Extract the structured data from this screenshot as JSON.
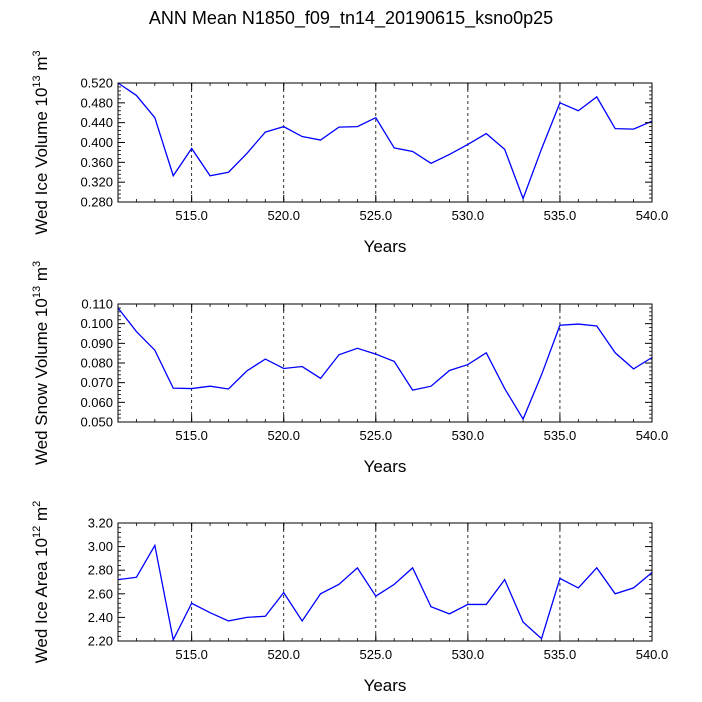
{
  "title": "ANN Mean N1850_f09_tn14_20190615_ksno0p25",
  "chart_data": [
    {
      "type": "line",
      "xlabel": "Years",
      "ylabel_main": "Wed Ice Volume 10",
      "ylabel_exp": "13",
      "ylabel_unit": " m",
      "ylabel_unit_exp": "3",
      "xlim": [
        511,
        540
      ],
      "ylim": [
        0.28,
        0.52
      ],
      "xticks": [
        515,
        520,
        525,
        530,
        535,
        540
      ],
      "xtick_labels": [
        "515.0",
        "520.0",
        "525.0",
        "530.0",
        "535.0",
        "540.0"
      ],
      "yticks": [
        0.28,
        0.32,
        0.36,
        0.4,
        0.44,
        0.48,
        0.52
      ],
      "ytick_labels": [
        "0.280",
        "0.320",
        "0.360",
        "0.400",
        "0.440",
        "0.480",
        "0.520"
      ],
      "x": [
        511,
        512,
        513,
        514,
        515,
        516,
        517,
        518,
        519,
        520,
        521,
        522,
        523,
        524,
        525,
        526,
        527,
        528,
        529,
        530,
        531,
        532,
        533,
        534,
        535,
        536,
        537,
        538,
        539,
        540
      ],
      "y": [
        0.52,
        0.495,
        0.45,
        0.333,
        0.388,
        0.333,
        0.34,
        0.378,
        0.421,
        0.432,
        0.412,
        0.405,
        0.431,
        0.432,
        0.45,
        0.389,
        0.382,
        0.358,
        0.376,
        0.396,
        0.418,
        0.386,
        0.287,
        0.387,
        0.48,
        0.464,
        0.492,
        0.428,
        0.427,
        0.443
      ],
      "line_color": "#0000ff",
      "vgrid": "dashed"
    },
    {
      "type": "line",
      "xlabel": "Years",
      "ylabel_main": "Wed Snow Volume 10",
      "ylabel_exp": "13",
      "ylabel_unit": " m",
      "ylabel_unit_exp": "3",
      "xlim": [
        511,
        540
      ],
      "ylim": [
        0.05,
        0.11
      ],
      "xticks": [
        515,
        520,
        525,
        530,
        535,
        540
      ],
      "xtick_labels": [
        "515.0",
        "520.0",
        "525.0",
        "530.0",
        "535.0",
        "540.0"
      ],
      "yticks": [
        0.05,
        0.06,
        0.07,
        0.08,
        0.09,
        0.1,
        0.11
      ],
      "ytick_labels": [
        "0.050",
        "0.060",
        "0.070",
        "0.080",
        "0.090",
        "0.100",
        "0.110"
      ],
      "x": [
        511,
        512,
        513,
        514,
        515,
        516,
        517,
        518,
        519,
        520,
        521,
        522,
        523,
        524,
        525,
        526,
        527,
        528,
        529,
        530,
        531,
        532,
        533,
        534,
        535,
        536,
        537,
        538,
        539,
        540
      ],
      "y": [
        0.108,
        0.096,
        0.0865,
        0.0672,
        0.067,
        0.0682,
        0.0668,
        0.076,
        0.082,
        0.0772,
        0.0782,
        0.0722,
        0.0842,
        0.0875,
        0.0845,
        0.0808,
        0.0662,
        0.0682,
        0.0762,
        0.0792,
        0.0852,
        0.067,
        0.0515,
        0.074,
        0.0992,
        0.0998,
        0.0988,
        0.0852,
        0.077,
        0.0828
      ],
      "line_color": "#0000ff",
      "vgrid": "dashed"
    },
    {
      "type": "line",
      "xlabel": "Years",
      "ylabel_main": "Wed Ice Area 10",
      "ylabel_exp": "12",
      "ylabel_unit": " m",
      "ylabel_unit_exp": "2",
      "xlim": [
        511,
        540
      ],
      "ylim": [
        2.2,
        3.2
      ],
      "xticks": [
        515,
        520,
        525,
        530,
        535,
        540
      ],
      "xtick_labels": [
        "515.0",
        "520.0",
        "525.0",
        "530.0",
        "535.0",
        "540.0"
      ],
      "yticks": [
        2.2,
        2.4,
        2.6,
        2.8,
        3.0,
        3.2
      ],
      "ytick_labels": [
        "2.20",
        "2.40",
        "2.60",
        "2.80",
        "3.00",
        "3.20"
      ],
      "x": [
        511,
        512,
        513,
        514,
        515,
        516,
        517,
        518,
        519,
        520,
        521,
        522,
        523,
        524,
        525,
        526,
        527,
        528,
        529,
        530,
        531,
        532,
        533,
        534,
        535,
        536,
        537,
        538,
        539,
        540
      ],
      "y": [
        2.72,
        2.74,
        3.01,
        2.21,
        2.52,
        2.44,
        2.37,
        2.4,
        2.41,
        2.61,
        2.37,
        2.6,
        2.68,
        2.82,
        2.58,
        2.68,
        2.82,
        2.49,
        2.43,
        2.51,
        2.51,
        2.72,
        2.36,
        2.22,
        2.73,
        2.65,
        2.82,
        2.6,
        2.65,
        2.78
      ],
      "line_color": "#0000ff",
      "vgrid": "dashed"
    }
  ]
}
